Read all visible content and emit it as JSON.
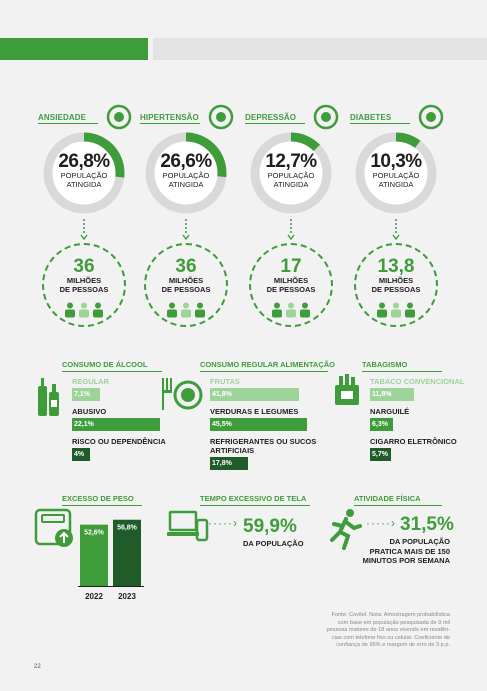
{
  "conditions": [
    {
      "label": "ANSIEDADE",
      "pct": "26,8%",
      "pct_value": 26.8,
      "sub1": "POPULAÇÃO",
      "sub2": "ATINGIDA",
      "people": "36",
      "people_sub1": "MILHÕES",
      "people_sub2": "DE PESSOAS",
      "icon": "brain-head-icon"
    },
    {
      "label": "HIPERTENSÃO",
      "pct": "26,6%",
      "pct_value": 26.6,
      "sub1": "POPULAÇÃO",
      "sub2": "ATINGIDA",
      "people": "36",
      "people_sub1": "MILHÕES",
      "people_sub2": "DE PESSOAS",
      "icon": "heart-pressure-icon"
    },
    {
      "label": "DEPRESSÃO",
      "pct": "12,7%",
      "pct_value": 12.7,
      "sub1": "POPULAÇÃO",
      "sub2": "ATINGIDA",
      "people": "17",
      "people_sub1": "MILHÕES",
      "people_sub2": "DE PESSOAS",
      "icon": "brain-icon"
    },
    {
      "label": "DIABETES",
      "pct": "10,3%",
      "pct_value": 10.3,
      "sub1": "POPULAÇÃO",
      "sub2": "ATINGIDA",
      "people": "13,8",
      "people_sub1": "MILHÕES",
      "people_sub2": "DE PESSOAS",
      "icon": "glucose-meter-icon"
    }
  ],
  "alcohol": {
    "title": "CONSUMO DE ÁLCOOL",
    "items": [
      {
        "label": "REGULAR",
        "value": "7,1%",
        "pct": 7.1
      },
      {
        "label": "ABUSIVO",
        "value": "22,1%",
        "pct": 22.1
      },
      {
        "label": "RISCO OU DEPENDÊNCIA",
        "value": "4%",
        "pct": 4
      }
    ]
  },
  "food": {
    "title": "CONSUMO REGULAR ALIMENTAÇÃO",
    "items": [
      {
        "label": "FRUTAS",
        "value": "41,8%",
        "pct": 41.8
      },
      {
        "label": "VERDURAS E LEGUMES",
        "value": "45,5%",
        "pct": 45.5
      },
      {
        "label": "REFRIGERANTES OU SUCOS ARTIFICIAIS",
        "value": "17,8%",
        "pct": 17.8
      }
    ]
  },
  "tobacco": {
    "title": "TABAGISMO",
    "items": [
      {
        "label": "TABACO CONVENCIONAL",
        "value": "11,8%",
        "pct": 11.8
      },
      {
        "label": "NARGUILÉ",
        "value": "6,3%",
        "pct": 6.3
      },
      {
        "label": "CIGARRO ELETRÔNICO",
        "value": "5,7%",
        "pct": 5.7
      }
    ]
  },
  "weight": {
    "title": "EXCESSO DE PESO",
    "bars": [
      {
        "year": "2022",
        "value": "52,6%",
        "pct": 52.6
      },
      {
        "year": "2023",
        "value": "56,8%",
        "pct": 56.8
      }
    ]
  },
  "screen": {
    "title": "TEMPO EXCESSIVO DE TELA",
    "value": "59,9%",
    "sub": "DA POPULAÇÃO"
  },
  "activity": {
    "title": "ATIVIDADE FÍSICA",
    "value": "31,5%",
    "sub1": "DA POPULAÇÃO",
    "sub2": "PRATICA MAIS DE 150",
    "sub3": "MINUTOS POR SEMANA"
  },
  "source": {
    "l1": "Fonte: Covitel. Nota: Amostragem probabilística",
    "l2": "com base em população pesquisada de 9 mil",
    "l3": "pessoas maiores de 18 anos vivendo em residên-",
    "l4": "cias com telefone fixo ou celular. Coeficiente de",
    "l5": "confiança de 95% e margem de erro de 3 p.p."
  },
  "page_number": "22",
  "colors": {
    "green": "#3f9c3b",
    "dark_green": "#1f5c2a",
    "light_green": "#9ed39a",
    "gray": "#d9d9d9"
  }
}
